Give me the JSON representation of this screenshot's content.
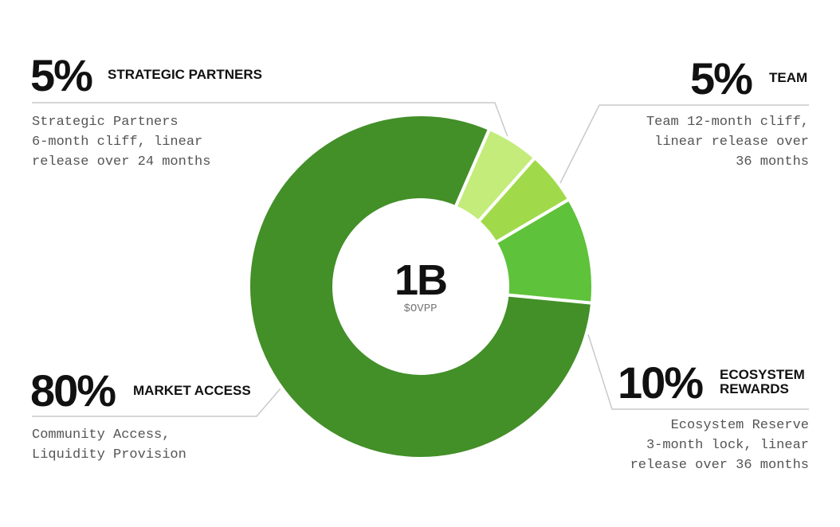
{
  "chart_data": {
    "type": "pie",
    "center_value": "1B",
    "center_unit": "$OVPP",
    "slices": [
      {
        "label": "STRATEGIC PARTNERS",
        "value": 5,
        "pct_text": "5%",
        "color": "#c3ec7a",
        "description": "Strategic Partners\n6-month cliff, linear\nrelease over 24 months"
      },
      {
        "label": "TEAM",
        "value": 5,
        "pct_text": "5%",
        "color": "#a0da4a",
        "description": "Team 12-month cliff,\nlinear release over\n36 months"
      },
      {
        "label": "ECOSYSTEM\nREWARDS",
        "value": 10,
        "pct_text": "10%",
        "color": "#5ec23a",
        "description": "Ecosystem Reserve\n3-month lock, linear\nrelease over 36 months"
      },
      {
        "label": "MARKET ACCESS",
        "value": 80,
        "pct_text": "80%",
        "color": "#438f28",
        "description": "Community Access,\nLiquidity Provision"
      }
    ]
  }
}
